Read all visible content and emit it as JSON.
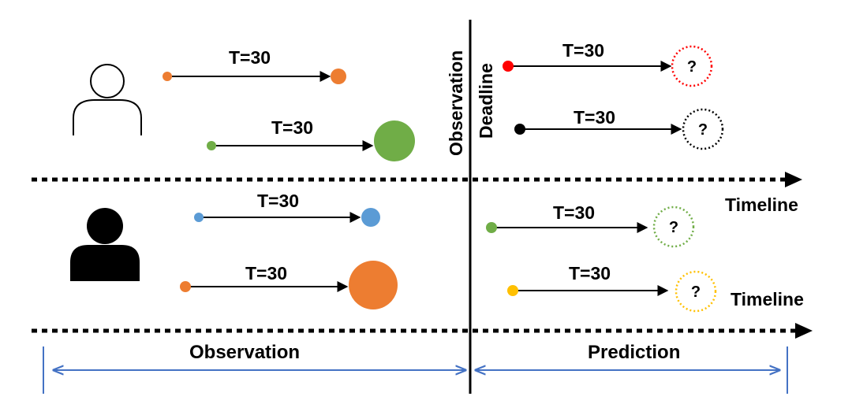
{
  "colors": {
    "orange": "#ED7D31",
    "green": "#70AD47",
    "blue": "#5B9BD5",
    "red": "#FF0000",
    "black": "#000000",
    "yellow": "#FFC000",
    "span_blue": "#4472C4"
  },
  "labels": {
    "duration": "T=30",
    "unknown": "?",
    "timeline_upper": "Timeline",
    "timeline_lower": "Timeline",
    "deadline_line1": "Observation",
    "deadline_line2": "Deadline",
    "observation_span": "Observation",
    "prediction_span": "Prediction"
  },
  "actors": [
    {
      "name": "user-outline",
      "style": "outline"
    },
    {
      "name": "user-filled",
      "style": "filled"
    }
  ],
  "observed_tracks": [
    {
      "actor": "user-outline",
      "color": "orange",
      "start_size": "small",
      "end_size": "small"
    },
    {
      "actor": "user-outline",
      "color": "green",
      "start_size": "small",
      "end_size": "large"
    },
    {
      "actor": "user-filled",
      "color": "blue",
      "start_size": "small",
      "end_size": "small"
    },
    {
      "actor": "user-filled",
      "color": "orange",
      "start_size": "small",
      "end_size": "large"
    }
  ],
  "predicted_tracks": [
    {
      "color": "red",
      "outcome": "?"
    },
    {
      "color": "black",
      "outcome": "?"
    },
    {
      "color": "green",
      "outcome": "?"
    },
    {
      "color": "yellow",
      "outcome": "?"
    }
  ]
}
